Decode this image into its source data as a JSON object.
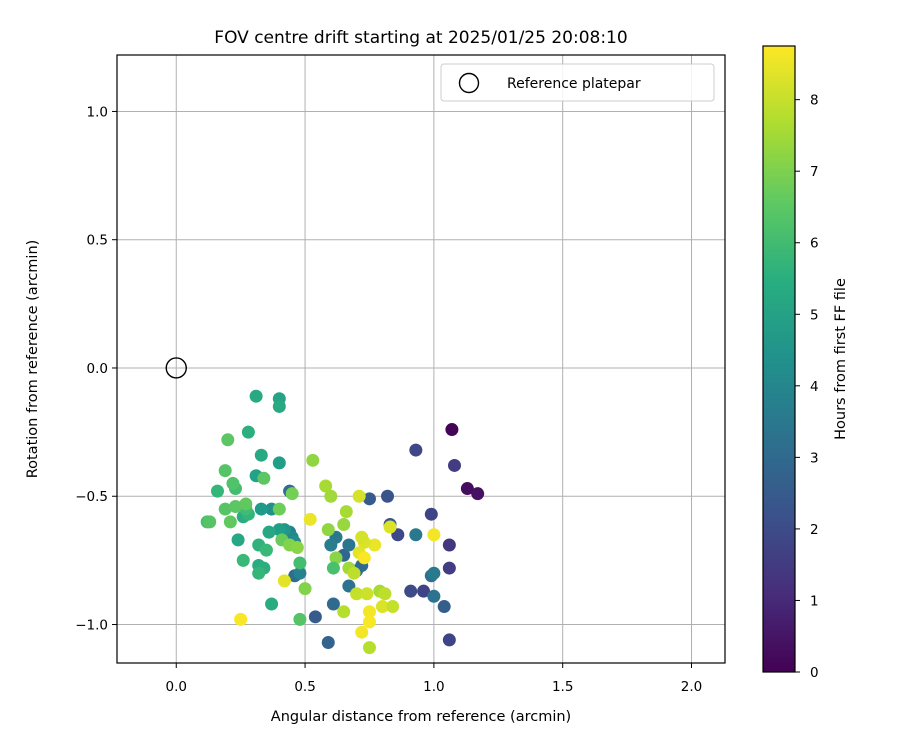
{
  "chart_data": {
    "type": "scatter",
    "title": "FOV centre drift starting at 2025/01/25 20:08:10",
    "xlabel": "Angular distance from reference (arcmin)",
    "ylabel": "Rotation from reference (arcmin)",
    "xlim": [
      -0.23,
      2.13
    ],
    "ylim": [
      -1.15,
      1.22
    ],
    "xticks": [
      0.0,
      0.5,
      1.0,
      1.5,
      2.0
    ],
    "xtick_labels": [
      "0.0",
      "0.5",
      "1.0",
      "1.5",
      "2.0"
    ],
    "yticks": [
      1.0,
      0.5,
      0.0,
      -0.5,
      -1.0
    ],
    "ytick_labels": [
      "1.0",
      "0.5",
      "0.0",
      "−0.5",
      "−1.0"
    ],
    "grid": true,
    "legend": {
      "placement": "top-right",
      "entries": [
        {
          "label": "Reference platepar",
          "marker": "open-circle"
        }
      ]
    },
    "reference_point": {
      "x": 0.0,
      "y": 0.0
    },
    "colorbar": {
      "label": "Hours from first FF file",
      "colormap": "viridis",
      "range": [
        0,
        8.75
      ],
      "ticks": [
        0,
        1,
        2,
        3,
        4,
        5,
        6,
        7,
        8
      ],
      "tick_labels": [
        "0",
        "1",
        "2",
        "3",
        "4",
        "5",
        "6",
        "7",
        "8"
      ]
    },
    "points": [
      {
        "x": 1.07,
        "y": -0.24,
        "t": 0.1
      },
      {
        "x": 1.13,
        "y": -0.47,
        "t": 0.3
      },
      {
        "x": 1.17,
        "y": -0.49,
        "t": 0.4
      },
      {
        "x": 1.08,
        "y": -0.38,
        "t": 1.6
      },
      {
        "x": 0.93,
        "y": -0.32,
        "t": 1.9
      },
      {
        "x": 1.06,
        "y": -0.69,
        "t": 1.4
      },
      {
        "x": 1.06,
        "y": -0.78,
        "t": 1.6
      },
      {
        "x": 1.06,
        "y": -1.06,
        "t": 1.8
      },
      {
        "x": 0.99,
        "y": -0.57,
        "t": 1.8
      },
      {
        "x": 0.96,
        "y": -0.87,
        "t": 1.8
      },
      {
        "x": 0.91,
        "y": -0.87,
        "t": 2.0
      },
      {
        "x": 0.86,
        "y": -0.65,
        "t": 1.9
      },
      {
        "x": 0.82,
        "y": -0.5,
        "t": 2.3
      },
      {
        "x": 0.75,
        "y": -0.51,
        "t": 2.5
      },
      {
        "x": 0.83,
        "y": -0.61,
        "t": 2.4
      },
      {
        "x": 1.04,
        "y": -0.93,
        "t": 2.6
      },
      {
        "x": 0.99,
        "y": -0.81,
        "t": 3.2
      },
      {
        "x": 1.0,
        "y": -0.8,
        "t": 3.6
      },
      {
        "x": 1.0,
        "y": -0.89,
        "t": 3.3
      },
      {
        "x": 0.93,
        "y": -0.65,
        "t": 3.5
      },
      {
        "x": 0.54,
        "y": -0.97,
        "t": 2.5
      },
      {
        "x": 0.59,
        "y": -1.07,
        "t": 2.8
      },
      {
        "x": 0.61,
        "y": -0.92,
        "t": 3.0
      },
      {
        "x": 0.67,
        "y": -0.85,
        "t": 3.3
      },
      {
        "x": 0.7,
        "y": -0.79,
        "t": 3.1
      },
      {
        "x": 0.72,
        "y": -0.77,
        "t": 3.0
      },
      {
        "x": 0.65,
        "y": -0.73,
        "t": 2.9
      },
      {
        "x": 0.67,
        "y": -0.69,
        "t": 3.4
      },
      {
        "x": 0.62,
        "y": -0.66,
        "t": 3.5
      },
      {
        "x": 0.6,
        "y": -0.69,
        "t": 3.7
      },
      {
        "x": 0.46,
        "y": -0.81,
        "t": 3.1
      },
      {
        "x": 0.44,
        "y": -0.48,
        "t": 3.1
      },
      {
        "x": 0.44,
        "y": -0.64,
        "t": 3.8
      },
      {
        "x": 0.48,
        "y": -0.8,
        "t": 3.9
      },
      {
        "x": 0.45,
        "y": -0.66,
        "t": 4.1
      },
      {
        "x": 0.46,
        "y": -0.68,
        "t": 4.3
      },
      {
        "x": 0.42,
        "y": -0.63,
        "t": 4.6
      },
      {
        "x": 0.4,
        "y": -0.63,
        "t": 4.9
      },
      {
        "x": 0.37,
        "y": -0.55,
        "t": 4.4
      },
      {
        "x": 0.33,
        "y": -0.55,
        "t": 4.8
      },
      {
        "x": 0.36,
        "y": -0.64,
        "t": 5.2
      },
      {
        "x": 0.31,
        "y": -0.42,
        "t": 5.0
      },
      {
        "x": 0.4,
        "y": -0.37,
        "t": 4.9
      },
      {
        "x": 0.33,
        "y": -0.34,
        "t": 5.3
      },
      {
        "x": 0.28,
        "y": -0.25,
        "t": 5.5
      },
      {
        "x": 0.31,
        "y": -0.11,
        "t": 5.3
      },
      {
        "x": 0.4,
        "y": -0.12,
        "t": 5.1
      },
      {
        "x": 0.4,
        "y": -0.15,
        "t": 5.3
      },
      {
        "x": 0.32,
        "y": -0.77,
        "t": 5.4
      },
      {
        "x": 0.34,
        "y": -0.78,
        "t": 5.5
      },
      {
        "x": 0.37,
        "y": -0.92,
        "t": 5.4
      },
      {
        "x": 0.32,
        "y": -0.8,
        "t": 5.8
      },
      {
        "x": 0.32,
        "y": -0.69,
        "t": 5.6
      },
      {
        "x": 0.35,
        "y": -0.71,
        "t": 5.9
      },
      {
        "x": 0.26,
        "y": -0.75,
        "t": 5.9
      },
      {
        "x": 0.24,
        "y": -0.67,
        "t": 5.2
      },
      {
        "x": 0.26,
        "y": -0.58,
        "t": 5.4
      },
      {
        "x": 0.28,
        "y": -0.57,
        "t": 5.7
      },
      {
        "x": 0.27,
        "y": -0.55,
        "t": 6.0
      },
      {
        "x": 0.23,
        "y": -0.47,
        "t": 6.1
      },
      {
        "x": 0.22,
        "y": -0.45,
        "t": 6.3
      },
      {
        "x": 0.16,
        "y": -0.48,
        "t": 5.8
      },
      {
        "x": 0.19,
        "y": -0.4,
        "t": 6.4
      },
      {
        "x": 0.2,
        "y": -0.28,
        "t": 6.5
      },
      {
        "x": 0.19,
        "y": -0.55,
        "t": 6.4
      },
      {
        "x": 0.23,
        "y": -0.54,
        "t": 6.5
      },
      {
        "x": 0.21,
        "y": -0.6,
        "t": 6.6
      },
      {
        "x": 0.12,
        "y": -0.6,
        "t": 6.2
      },
      {
        "x": 0.13,
        "y": -0.6,
        "t": 6.4
      },
      {
        "x": 0.27,
        "y": -0.53,
        "t": 6.6
      },
      {
        "x": 0.34,
        "y": -0.43,
        "t": 6.5
      },
      {
        "x": 0.4,
        "y": -0.55,
        "t": 6.8
      },
      {
        "x": 0.45,
        "y": -0.49,
        "t": 6.9
      },
      {
        "x": 0.41,
        "y": -0.67,
        "t": 6.7
      },
      {
        "x": 0.44,
        "y": -0.69,
        "t": 7.1
      },
      {
        "x": 0.47,
        "y": -0.7,
        "t": 7.2
      },
      {
        "x": 0.48,
        "y": -0.76,
        "t": 6.1
      },
      {
        "x": 0.48,
        "y": -0.98,
        "t": 6.4
      },
      {
        "x": 0.5,
        "y": -0.86,
        "t": 7.1
      },
      {
        "x": 0.53,
        "y": -0.36,
        "t": 7.3
      },
      {
        "x": 0.58,
        "y": -0.46,
        "t": 7.6
      },
      {
        "x": 0.6,
        "y": -0.5,
        "t": 7.5
      },
      {
        "x": 0.66,
        "y": -0.56,
        "t": 7.6
      },
      {
        "x": 0.65,
        "y": -0.61,
        "t": 7.4
      },
      {
        "x": 0.59,
        "y": -0.63,
        "t": 7.3
      },
      {
        "x": 0.62,
        "y": -0.74,
        "t": 7.2
      },
      {
        "x": 0.61,
        "y": -0.78,
        "t": 6.2
      },
      {
        "x": 0.67,
        "y": -0.78,
        "t": 7.5
      },
      {
        "x": 0.69,
        "y": -0.8,
        "t": 7.9
      },
      {
        "x": 0.65,
        "y": -0.95,
        "t": 7.8
      },
      {
        "x": 0.7,
        "y": -0.88,
        "t": 8.0
      },
      {
        "x": 0.74,
        "y": -0.88,
        "t": 8.1
      },
      {
        "x": 0.75,
        "y": -1.09,
        "t": 7.8
      },
      {
        "x": 0.72,
        "y": -1.03,
        "t": 8.6
      },
      {
        "x": 0.75,
        "y": -0.95,
        "t": 8.6
      },
      {
        "x": 0.75,
        "y": -0.99,
        "t": 8.7
      },
      {
        "x": 0.79,
        "y": -0.87,
        "t": 7.6
      },
      {
        "x": 0.8,
        "y": -0.93,
        "t": 8.3
      },
      {
        "x": 0.84,
        "y": -0.93,
        "t": 8.0
      },
      {
        "x": 0.81,
        "y": -0.88,
        "t": 7.9
      },
      {
        "x": 0.77,
        "y": -0.69,
        "t": 8.5
      },
      {
        "x": 0.73,
        "y": -0.68,
        "t": 8.3
      },
      {
        "x": 0.72,
        "y": -0.66,
        "t": 8.2
      },
      {
        "x": 0.71,
        "y": -0.72,
        "t": 8.4
      },
      {
        "x": 0.73,
        "y": -0.74,
        "t": 8.7
      },
      {
        "x": 0.71,
        "y": -0.5,
        "t": 8.2
      },
      {
        "x": 0.83,
        "y": -0.62,
        "t": 8.3
      },
      {
        "x": 1.0,
        "y": -0.65,
        "t": 8.6
      },
      {
        "x": 0.52,
        "y": -0.59,
        "t": 8.5
      },
      {
        "x": 0.42,
        "y": -0.83,
        "t": 8.4
      },
      {
        "x": 0.25,
        "y": -0.98,
        "t": 8.7
      }
    ]
  }
}
